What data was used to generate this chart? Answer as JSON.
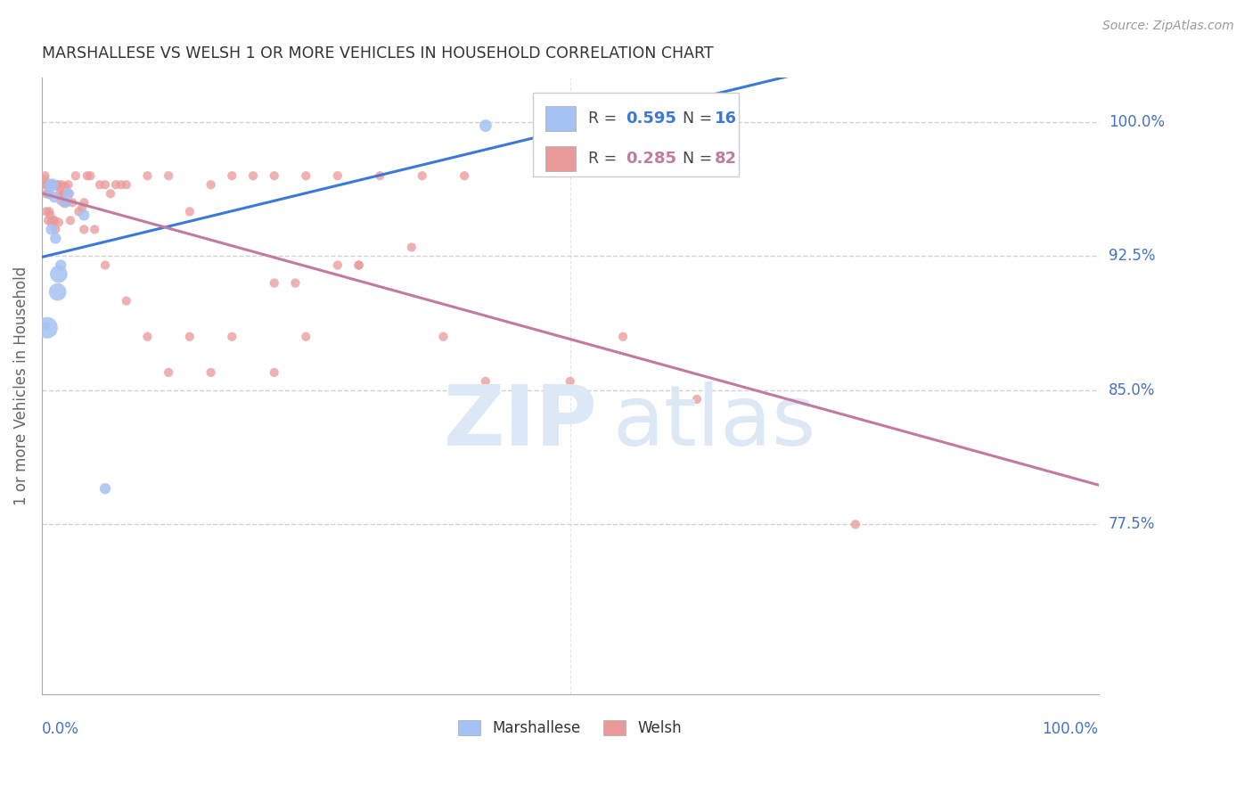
{
  "title": "MARSHALLESE VS WELSH 1 OR MORE VEHICLES IN HOUSEHOLD CORRELATION CHART",
  "source": "Source: ZipAtlas.com",
  "ylabel": "1 or more Vehicles in Household",
  "ytick_labels": [
    "100.0%",
    "92.5%",
    "85.0%",
    "77.5%"
  ],
  "ytick_values": [
    1.0,
    0.925,
    0.85,
    0.775
  ],
  "xlim": [
    0.0,
    1.0
  ],
  "ylim": [
    0.68,
    1.025
  ],
  "watermark_text": "ZIPatlas",
  "blue_scatter_color": "#a4c2f4",
  "pink_scatter_color": "#ea9999",
  "blue_line_color": "#3c78d8",
  "pink_line_color": "#c27ba0",
  "grid_color": "#cccccc",
  "blue_R": "0.595",
  "blue_N": "16",
  "pink_R": "0.285",
  "pink_N": "82",
  "marshallese_x": [
    0.004,
    0.005,
    0.007,
    0.008,
    0.009,
    0.01,
    0.012,
    0.013,
    0.015,
    0.016,
    0.018,
    0.022,
    0.025,
    0.04,
    0.06,
    0.42
  ],
  "marshallese_y": [
    0.886,
    0.885,
    0.96,
    0.965,
    0.94,
    0.965,
    0.958,
    0.935,
    0.905,
    0.915,
    0.92,
    0.955,
    0.96,
    0.948,
    0.795,
    0.998
  ],
  "marshallese_sizes": [
    50,
    300,
    80,
    80,
    80,
    100,
    80,
    80,
    200,
    200,
    80,
    80,
    80,
    80,
    80,
    100
  ],
  "welsh_x": [
    0.002,
    0.003,
    0.004,
    0.005,
    0.006,
    0.006,
    0.007,
    0.008,
    0.009,
    0.009,
    0.01,
    0.011,
    0.012,
    0.013,
    0.014,
    0.015,
    0.016,
    0.017,
    0.018,
    0.019,
    0.02,
    0.021,
    0.022,
    0.023,
    0.025,
    0.026,
    0.027,
    0.029,
    0.032,
    0.035,
    0.038,
    0.04,
    0.043,
    0.046,
    0.05,
    0.055,
    0.06,
    0.065,
    0.07,
    0.075,
    0.08,
    0.1,
    0.12,
    0.14,
    0.16,
    0.18,
    0.2,
    0.22,
    0.25,
    0.28,
    0.32,
    0.36,
    0.4,
    0.38,
    0.3,
    0.25,
    0.22,
    0.18,
    0.16,
    0.14,
    0.12,
    0.1,
    0.08,
    0.06,
    0.04,
    0.02,
    0.015,
    0.01,
    0.008,
    0.006,
    0.004,
    0.003,
    0.42,
    0.5,
    0.55,
    0.3,
    0.35,
    0.28,
    0.24,
    0.22,
    0.62,
    0.77
  ],
  "welsh_y": [
    0.965,
    0.97,
    0.95,
    0.965,
    0.96,
    0.945,
    0.95,
    0.948,
    0.965,
    0.944,
    0.965,
    0.945,
    0.945,
    0.94,
    0.964,
    0.965,
    0.944,
    0.96,
    0.956,
    0.965,
    0.96,
    0.955,
    0.964,
    0.955,
    0.965,
    0.96,
    0.945,
    0.955,
    0.97,
    0.95,
    0.952,
    0.955,
    0.97,
    0.97,
    0.94,
    0.965,
    0.965,
    0.96,
    0.965,
    0.965,
    0.965,
    0.97,
    0.97,
    0.95,
    0.965,
    0.97,
    0.97,
    0.97,
    0.97,
    0.97,
    0.97,
    0.97,
    0.97,
    0.88,
    0.92,
    0.88,
    0.86,
    0.88,
    0.86,
    0.88,
    0.86,
    0.88,
    0.9,
    0.92,
    0.94,
    0.96,
    0.965,
    0.965,
    0.965,
    0.96,
    0.96,
    0.968,
    0.855,
    0.855,
    0.88,
    0.92,
    0.93,
    0.92,
    0.91,
    0.91,
    0.845,
    0.775
  ]
}
